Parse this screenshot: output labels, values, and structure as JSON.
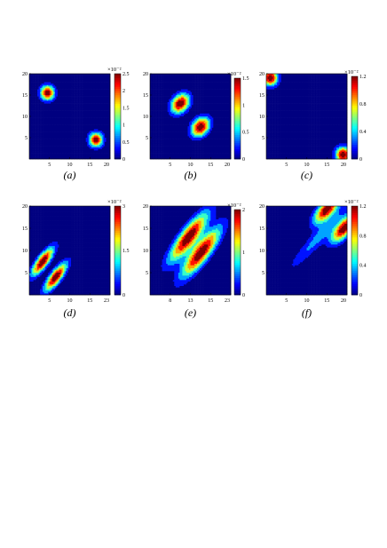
{
  "figure": {
    "panels": [
      {
        "caption": "(a)",
        "colorbar_exponent": "×10⁻²",
        "colorbar_ticks": [
          "0",
          "0.5",
          "1",
          "1.5",
          "2",
          "2.5"
        ],
        "x_ticks": [
          "5",
          "10",
          "15",
          "20"
        ],
        "y_ticks": [
          "5",
          "10",
          "15",
          "20"
        ]
      },
      {
        "caption": "(b)",
        "colorbar_exponent": "×10⁻²",
        "colorbar_ticks": [
          "0",
          "0.5",
          "1",
          "1.5"
        ],
        "x_ticks": [
          "5",
          "10",
          "15",
          "20"
        ],
        "y_ticks": [
          "5",
          "10",
          "15",
          "20"
        ]
      },
      {
        "caption": "(c)",
        "colorbar_exponent": "×10⁻²",
        "colorbar_ticks": [
          "0",
          "0.4",
          "0.8",
          "1.2"
        ],
        "x_ticks": [
          "5",
          "10",
          "15",
          "20"
        ],
        "y_ticks": [
          "5",
          "10",
          "15",
          "20"
        ]
      },
      {
        "caption": "(d)",
        "colorbar_exponent": "×10⁻²",
        "colorbar_ticks": [
          "0",
          "1.5",
          "3"
        ],
        "x_ticks": [
          "5",
          "10",
          "15",
          "23"
        ],
        "y_ticks": [
          "5",
          "10",
          "15",
          "20"
        ]
      },
      {
        "caption": "(e)",
        "colorbar_exponent": "×10⁻²",
        "colorbar_ticks": [
          "0",
          "1",
          "2"
        ],
        "x_ticks": [
          "8",
          "13",
          "15",
          "23"
        ],
        "y_ticks": [
          "5",
          "10",
          "15",
          "20"
        ]
      },
      {
        "caption": "(f)",
        "colorbar_exponent": "×10⁻²",
        "colorbar_ticks": [
          "0",
          "0.4",
          "0.8",
          "1.2"
        ],
        "x_ticks": [
          "5",
          "10",
          "15",
          "20"
        ],
        "y_ticks": [
          "5",
          "10",
          "15",
          "20"
        ]
      }
    ]
  },
  "chart_data": [
    {
      "type": "heatmap",
      "panel": "(a)",
      "xlim": [
        0,
        20
      ],
      "ylim": [
        0,
        20
      ],
      "zlim": [
        0,
        2.5
      ],
      "z_scale": "×10⁻²",
      "peaks": [
        {
          "x": 4.5,
          "y": 15.5,
          "amp": 2.5,
          "sx": 1.2,
          "sy": 1.2,
          "rho": 0
        },
        {
          "x": 16.5,
          "y": 4.5,
          "amp": 2.4,
          "sx": 1.2,
          "sy": 1.2,
          "rho": 0
        }
      ]
    },
    {
      "type": "heatmap",
      "panel": "(b)",
      "xlim": [
        0,
        20
      ],
      "ylim": [
        0,
        20
      ],
      "zlim": [
        0,
        1.7
      ],
      "z_scale": "×10⁻²",
      "peaks": [
        {
          "x": 7.5,
          "y": 13,
          "amp": 1.7,
          "sx": 1.6,
          "sy": 1.6,
          "rho": 0.3
        },
        {
          "x": 12.5,
          "y": 7.5,
          "amp": 1.7,
          "sx": 1.6,
          "sy": 1.6,
          "rho": 0.3
        }
      ]
    },
    {
      "type": "heatmap",
      "panel": "(c)",
      "xlim": [
        0,
        20
      ],
      "ylim": [
        0,
        20
      ],
      "zlim": [
        0,
        1.2
      ],
      "z_scale": "×10⁻²",
      "peaks": [
        {
          "x": 1,
          "y": 19,
          "amp": 1.2,
          "sx": 1.3,
          "sy": 1.3,
          "rho": 0
        },
        {
          "x": 19,
          "y": 1,
          "amp": 1.2,
          "sx": 1.3,
          "sy": 1.3,
          "rho": 0
        }
      ]
    },
    {
      "type": "heatmap",
      "panel": "(d)",
      "xlim": [
        0,
        23
      ],
      "ylim": [
        0,
        20
      ],
      "zlim": [
        0,
        3.3
      ],
      "z_scale": "×10⁻²",
      "peaks": [
        {
          "x": 3.8,
          "y": 7.5,
          "amp": 3.3,
          "sx": 2.2,
          "sy": 2.2,
          "rho": 0.8
        },
        {
          "x": 7.5,
          "y": 4,
          "amp": 3.3,
          "sx": 2.2,
          "sy": 2.2,
          "rho": 0.8
        }
      ]
    },
    {
      "type": "heatmap",
      "panel": "(e)",
      "xlim": [
        0,
        23
      ],
      "ylim": [
        0,
        20
      ],
      "zlim": [
        0,
        2
      ],
      "z_scale": "×10⁻²",
      "peaks": [
        {
          "x": 11,
          "y": 13,
          "amp": 2.0,
          "sx": 3.8,
          "sy": 3.8,
          "rho": 0.85
        },
        {
          "x": 14.5,
          "y": 9.5,
          "amp": 2.0,
          "sx": 3.8,
          "sy": 3.8,
          "rho": 0.85
        }
      ]
    },
    {
      "type": "heatmap",
      "panel": "(f)",
      "xlim": [
        0,
        20
      ],
      "ylim": [
        0,
        20
      ],
      "zlim": [
        0,
        1.35
      ],
      "z_scale": "×10⁻²",
      "peaks": [
        {
          "x": 15,
          "y": 19.3,
          "amp": 1.35,
          "sx": 2.2,
          "sy": 2.2,
          "rho": 0.7
        },
        {
          "x": 19.3,
          "y": 15,
          "amp": 1.35,
          "sx": 2.2,
          "sy": 2.2,
          "rho": 0.7
        },
        {
          "x": 13,
          "y": 13,
          "amp": 0.4,
          "sx": 5.0,
          "sy": 5.0,
          "rho": 0.95
        }
      ]
    }
  ]
}
